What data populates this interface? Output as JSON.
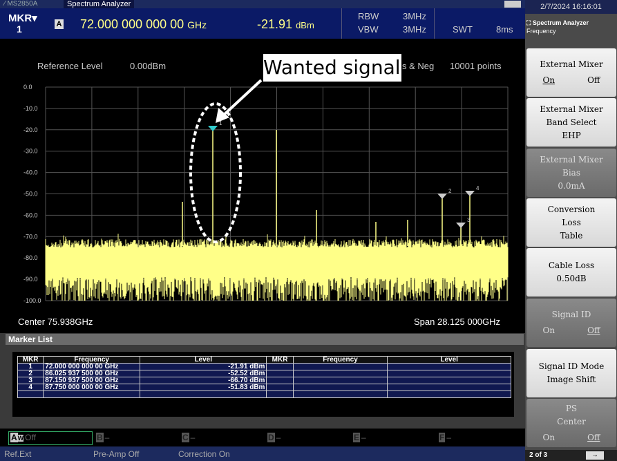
{
  "title_bar": {
    "model": "MS2850A",
    "app": "Spectrum Analyzer",
    "datetime": "2/7/2024 16:16:01"
  },
  "header": {
    "mkr_label": "MKR",
    "mkr_number": "1",
    "trace": "A",
    "frequency": "72.000 000 000 00",
    "frequency_unit": "GHz",
    "level": "-21.91",
    "level_unit": "dBm",
    "rbw_label": "RBW",
    "rbw": "3MHz",
    "vbw_label": "VBW",
    "vbw": "3MHz",
    "swt_label": "SWT",
    "swt": "8ms"
  },
  "graph": {
    "reference_level_label": "Reference Level",
    "reference_level": "0.00dBm",
    "detection": "s & Neg",
    "points": "10001 points",
    "y_labels": [
      "0.0",
      "-10.0",
      "-20.0",
      "-30.0",
      "-40.0",
      "-50.0",
      "-60.0",
      "-70.0",
      "-80.0",
      "-90.0",
      "-100.0"
    ],
    "center": "Center 75.938GHz",
    "span": "Span 28.125 000GHz",
    "annotation": "Wanted signal",
    "marker_labels": [
      "1",
      "2",
      "3",
      "4"
    ]
  },
  "marker_list": {
    "title": "Marker List",
    "columns": [
      "MKR",
      "Frequency",
      "Level",
      "MKR",
      "Frequency",
      "Level"
    ],
    "rows": [
      [
        "1",
        "72.000 000 000 00 GHz",
        "-21.91 dBm"
      ],
      [
        "2",
        "86.025 937 500 00 GHz",
        "-52.52 dBm"
      ],
      [
        "3",
        "87.150 937 500 00 GHz",
        "-66.70 dBm"
      ],
      [
        "4",
        "87.750 000 000 00 GHz",
        "-51.83 dBm"
      ]
    ]
  },
  "traces": [
    {
      "label": "A",
      "mode": "W",
      "status": "Off"
    },
    {
      "label": "B",
      "status": "–"
    },
    {
      "label": "C",
      "status": "–"
    },
    {
      "label": "D",
      "status": "–"
    },
    {
      "label": "E",
      "status": "–"
    },
    {
      "label": "F",
      "status": "–"
    }
  ],
  "status_bar": [
    "Ref.Ext",
    "Pre-Amp Off",
    "Correction On"
  ],
  "softkeys": {
    "header": "Spectrum Analyzer",
    "subheader": "Frequency",
    "page": "2 of 3",
    "keys": [
      {
        "lines": [
          "External Mixer"
        ],
        "options": [
          "On",
          "Off"
        ],
        "selected": 0,
        "enabled": true
      },
      {
        "lines": [
          "External Mixer",
          "Band Select",
          "EHP"
        ],
        "enabled": true
      },
      {
        "lines": [
          "External Mixer",
          "Bias",
          "0.0mA"
        ],
        "enabled": false
      },
      {
        "lines": [
          "Conversion",
          "Loss",
          "Table"
        ],
        "enabled": true
      },
      {
        "lines": [
          "Cable Loss",
          "0.50dB"
        ],
        "enabled": true
      },
      {
        "lines": [
          "Signal ID"
        ],
        "options": [
          "On",
          "Off"
        ],
        "selected": 1,
        "enabled": false
      },
      {
        "lines": [
          "Signal ID Mode",
          "Image Shift"
        ],
        "enabled": true
      },
      {
        "lines": [
          "PS",
          "Center"
        ],
        "options": [
          "On",
          "Off"
        ],
        "selected": 1,
        "enabled": false
      }
    ]
  }
}
